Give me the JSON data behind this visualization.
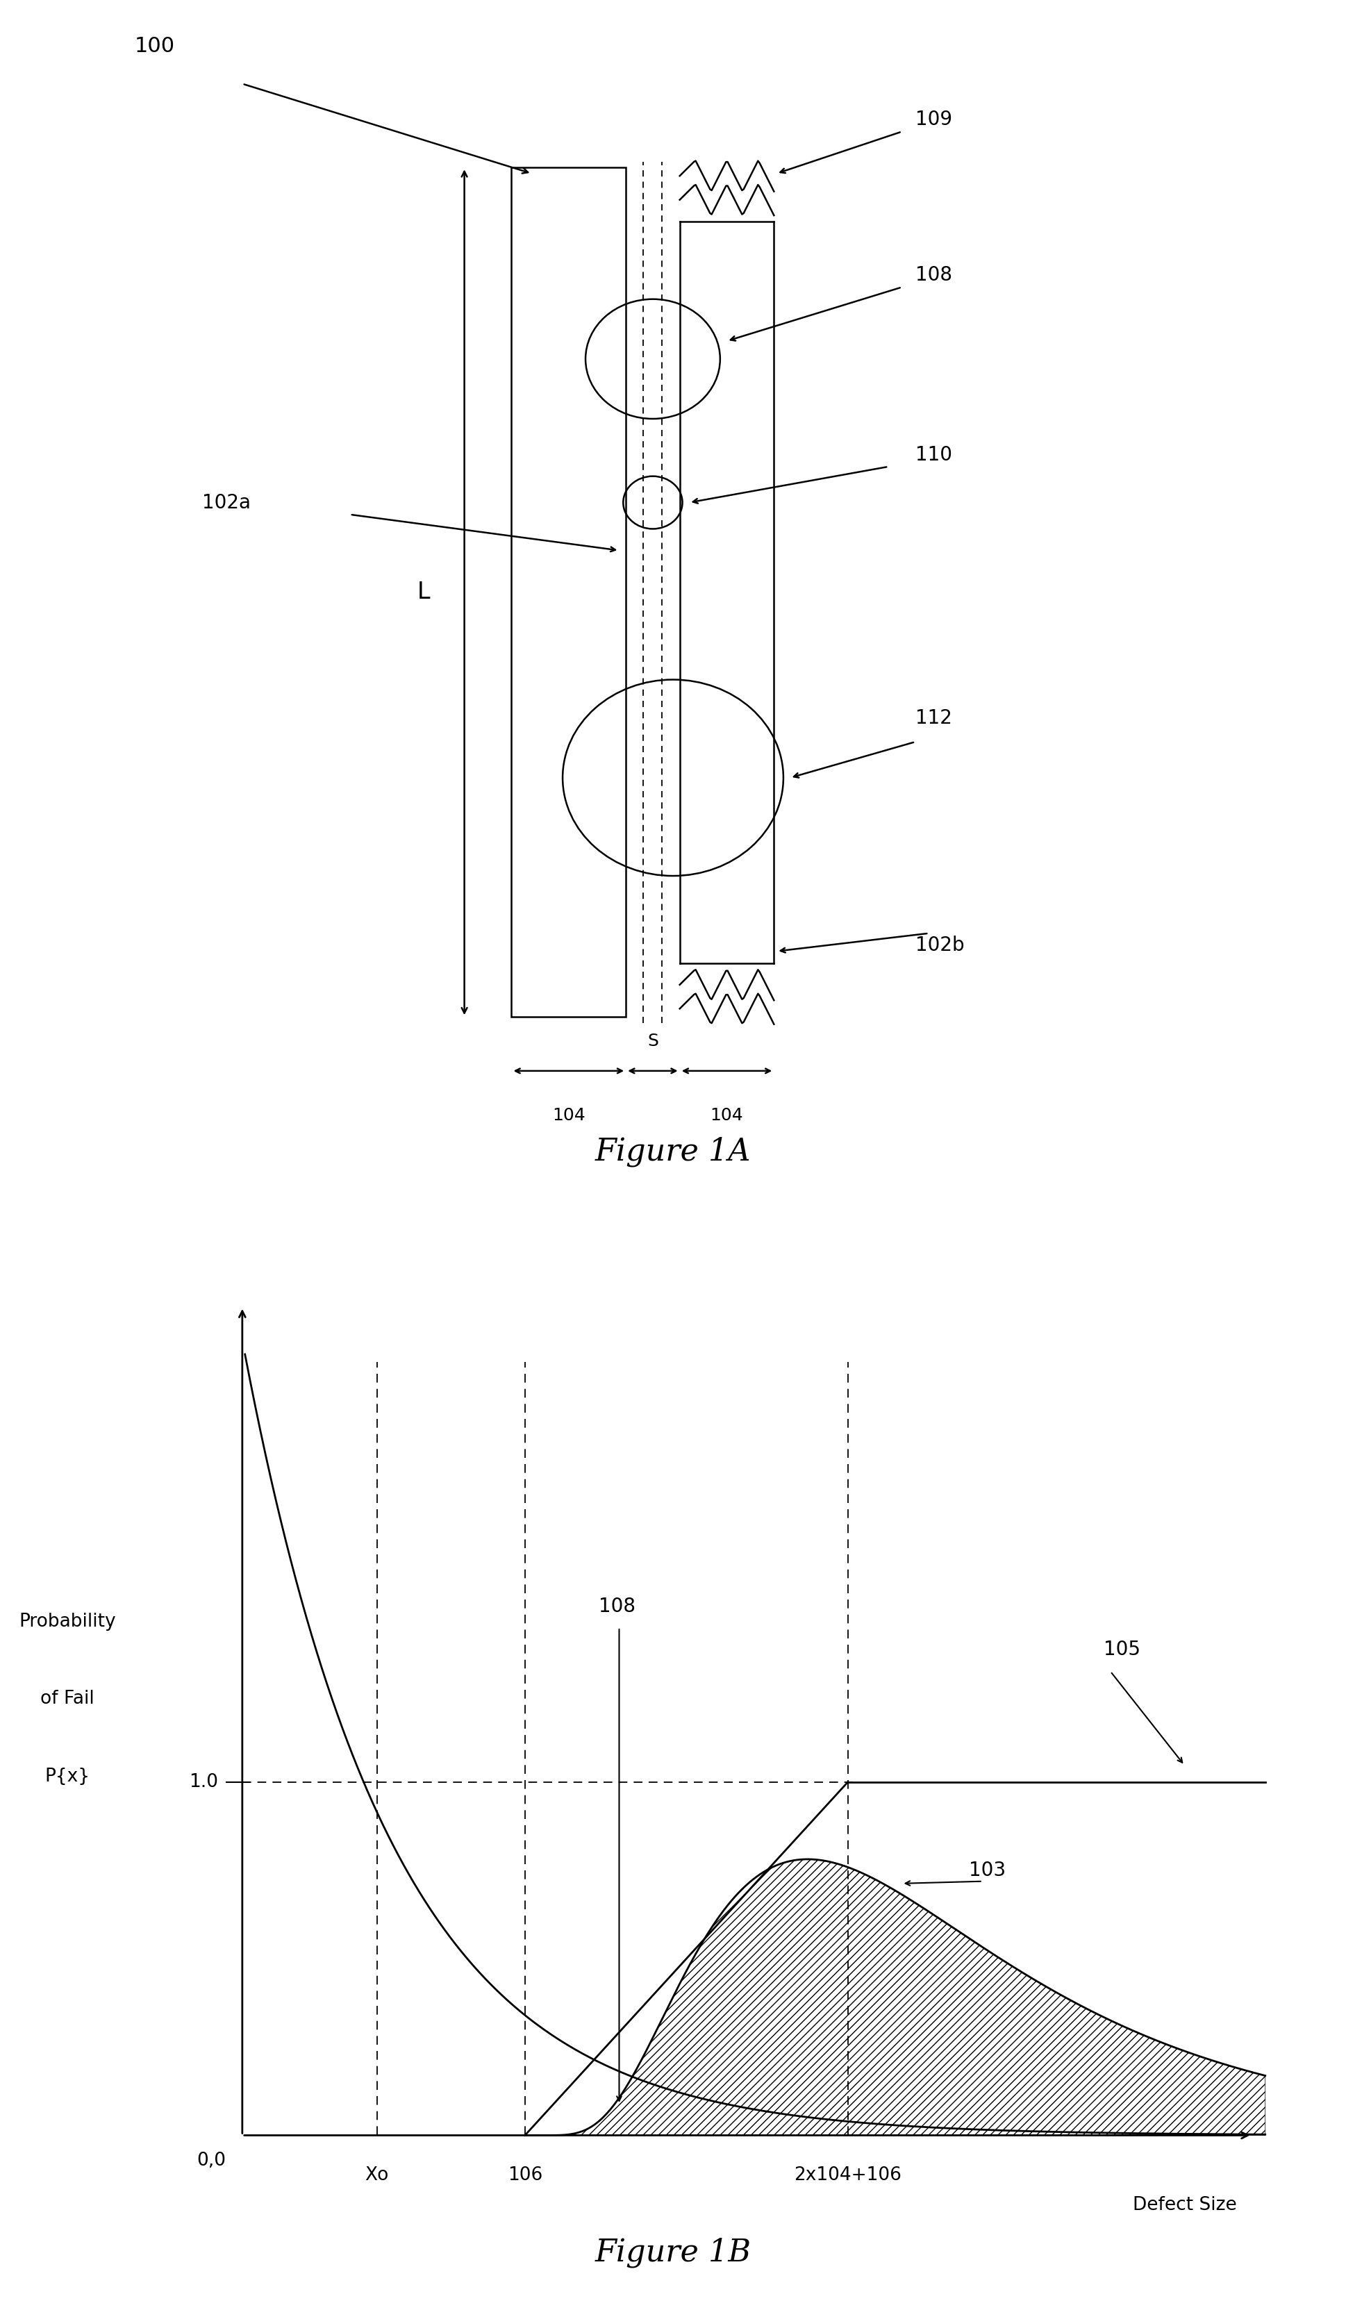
{
  "fig_width": 19.38,
  "fig_height": 33.13,
  "bg_color": "#ffffff",
  "fig1a_label": "Figure 1A",
  "fig1b_label": "Figure 1B",
  "label_100": "100",
  "label_102a": "102a",
  "label_102b": "102b",
  "label_104": "104",
  "label_106": "106",
  "label_108_fig1a": "108",
  "label_109": "109",
  "label_110": "110",
  "label_112": "112",
  "label_L": "L",
  "label_S": "S",
  "graph_ylabel_line1": "Probability",
  "graph_ylabel_line2": "of Fail",
  "graph_ylabel_line3": "P{x}",
  "graph_xlabel": "Defect Size",
  "graph_xo": "Xo",
  "graph_106": "106",
  "graph_2x104p106": "2x104+106",
  "graph_10": "1.0",
  "graph_00": "0,0",
  "graph_label_108": "108",
  "graph_label_103": "103",
  "graph_label_105": "105"
}
